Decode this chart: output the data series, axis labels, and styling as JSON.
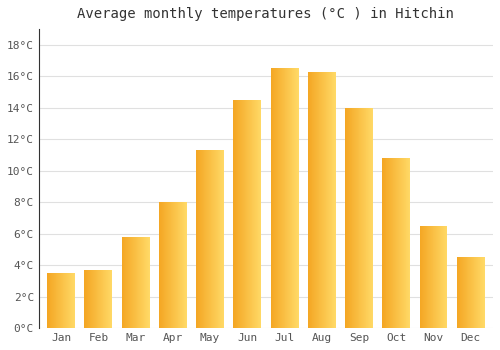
{
  "title": "Average monthly temperatures (°C ) in Hitchin",
  "months": [
    "Jan",
    "Feb",
    "Mar",
    "Apr",
    "May",
    "Jun",
    "Jul",
    "Aug",
    "Sep",
    "Oct",
    "Nov",
    "Dec"
  ],
  "values": [
    3.5,
    3.7,
    5.8,
    8.0,
    11.3,
    14.5,
    16.5,
    16.3,
    14.0,
    10.8,
    6.5,
    4.5
  ],
  "ylim": [
    0,
    19
  ],
  "yticks": [
    0,
    2,
    4,
    6,
    8,
    10,
    12,
    14,
    16,
    18
  ],
  "ytick_labels": [
    "0°C",
    "2°C",
    "4°C",
    "6°C",
    "8°C",
    "10°C",
    "12°C",
    "14°C",
    "16°C",
    "18°C"
  ],
  "background_color": "#FFFFFF",
  "plot_bg_color": "#FFFFFF",
  "grid_color": "#E0E0E0",
  "bar_color_left": "#F5A623",
  "bar_color_right": "#FFD966",
  "title_fontsize": 10,
  "tick_fontsize": 8,
  "bar_width": 0.75
}
